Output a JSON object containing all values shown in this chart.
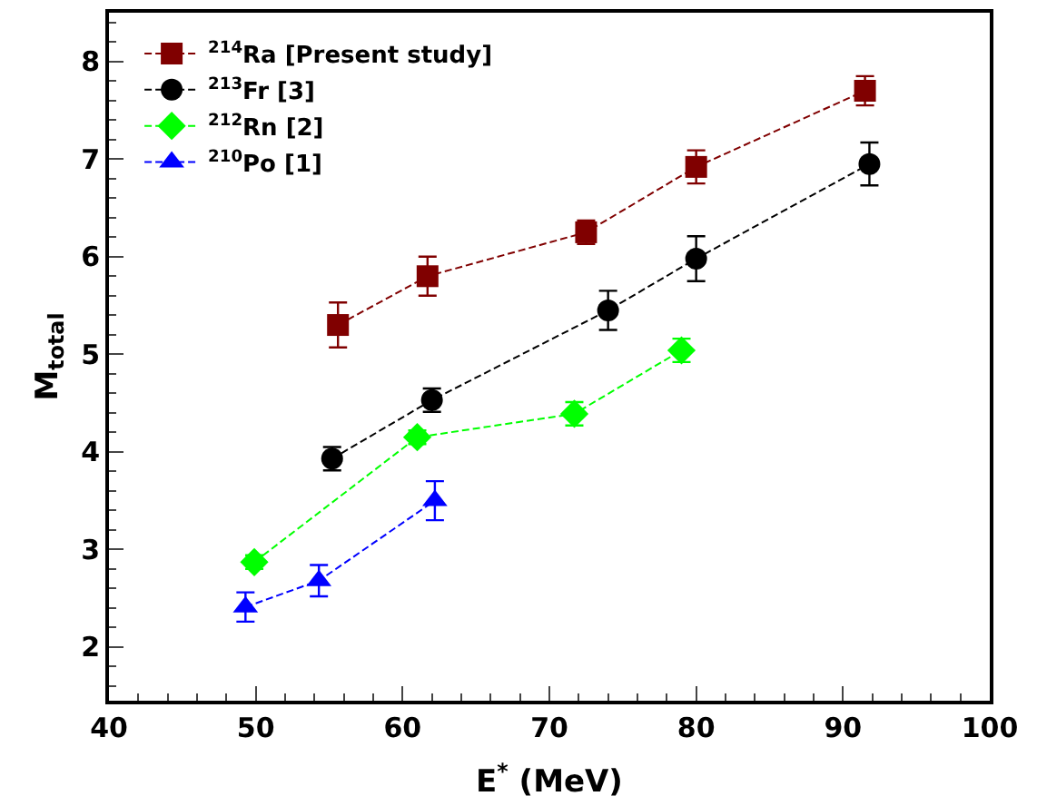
{
  "chart_data": {
    "type": "line",
    "xlabel": "E$^{*}$ (MeV)",
    "ylabel": "M$_{total}$",
    "xlim": [
      40,
      100
    ],
    "xticks": [
      40,
      50,
      60,
      70,
      80,
      90,
      100
    ],
    "ylim": [
      1.45,
      8.5
    ],
    "yticks": [
      2,
      3,
      4,
      5,
      6,
      7,
      8
    ],
    "legend": "top left",
    "line_style": "dashed",
    "series": [
      {
        "name": "$^{214}$Ra [Present study]",
        "color": "#800000",
        "marker": "square",
        "x": [
          55.6,
          61.7,
          72.5,
          80,
          91.5
        ],
        "values": [
          5.3,
          5.8,
          6.25,
          6.92,
          7.7
        ],
        "errors": [
          0.23,
          0.2,
          0.12,
          0.17,
          0.15
        ]
      },
      {
        "name": "$^{213}$Fr [3]",
        "color": "#000000",
        "marker": "circle",
        "x": [
          55.2,
          62.0,
          74.0,
          80,
          91.8
        ],
        "values": [
          3.93,
          4.53,
          5.45,
          5.98,
          6.95
        ],
        "errors": [
          0.12,
          0.12,
          0.2,
          0.23,
          0.22
        ]
      },
      {
        "name": "$^{212}$Rn [2]",
        "color": "#00ff00",
        "marker": "diamond",
        "x": [
          49.9,
          61.0,
          71.7,
          79
        ],
        "values": [
          2.87,
          4.15,
          4.39,
          5.04
        ],
        "errors": [
          0.07,
          0.07,
          0.12,
          0.12
        ]
      },
      {
        "name": "$^{210}$Po [1]",
        "color": "#0000ff",
        "marker": "triangle",
        "x": [
          49.3,
          54.3,
          62.2
        ],
        "values": [
          2.41,
          2.68,
          3.5
        ],
        "errors": [
          0.15,
          0.16,
          0.2
        ]
      }
    ]
  }
}
